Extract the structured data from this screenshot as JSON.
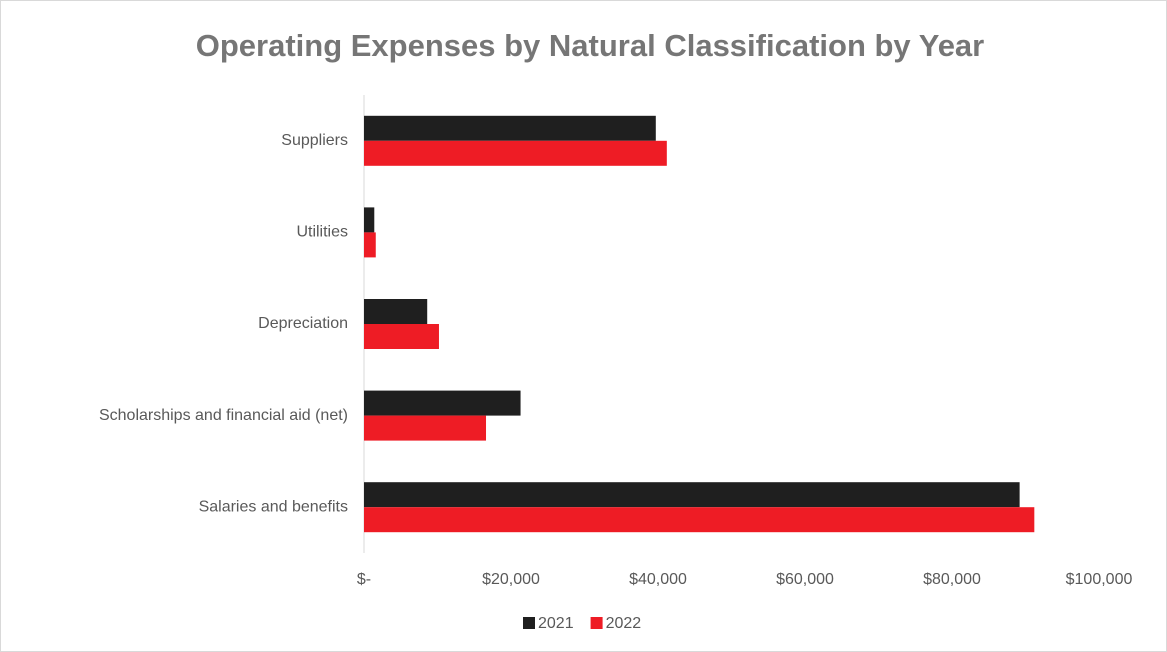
{
  "chart_data": {
    "type": "bar",
    "orientation": "horizontal",
    "title": "Operating Expenses by Natural Classification by Year",
    "categories": [
      "Suppliers",
      "Utilities",
      "Depreciation",
      "Scholarships and financial aid (net)",
      "Salaries and benefits"
    ],
    "series": [
      {
        "name": "2021",
        "color": "#1f1f1f",
        "values": [
          39700,
          1400,
          8600,
          21300,
          89200
        ]
      },
      {
        "name": "2022",
        "color": "#ee1c25",
        "values": [
          41200,
          1600,
          10200,
          16600,
          91200
        ]
      }
    ],
    "xlim": [
      0,
      100000
    ],
    "xticks": [
      {
        "value": 0,
        "label": "$-"
      },
      {
        "value": 20000,
        "label": "$20,000"
      },
      {
        "value": 40000,
        "label": "$40,000"
      },
      {
        "value": 60000,
        "label": "$60,000"
      },
      {
        "value": 80000,
        "label": "$80,000"
      },
      {
        "value": 100000,
        "label": "$100,000"
      }
    ],
    "legend": "bottom"
  }
}
